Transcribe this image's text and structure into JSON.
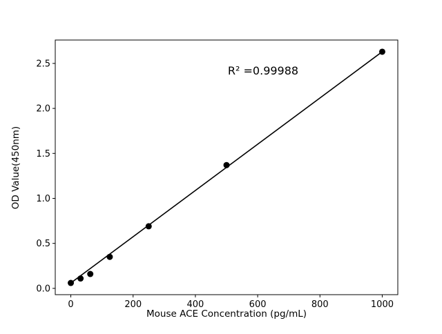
{
  "chart_data": {
    "type": "scatter",
    "title": "",
    "xlabel": "Mouse ACE Concentration (pg/mL)",
    "ylabel": "OD Value(450nm)",
    "annotation": "R² =0.99988",
    "x": [
      0,
      31.25,
      62.5,
      125,
      250,
      500,
      1000
    ],
    "y": [
      0.06,
      0.11,
      0.16,
      0.35,
      0.69,
      1.37,
      2.63
    ],
    "fit_line": {
      "x": [
        0,
        1000
      ],
      "y": [
        0.06,
        2.63
      ]
    },
    "xticks": [
      0,
      200,
      400,
      600,
      800,
      1000
    ],
    "xtick_labels": [
      "0",
      "200",
      "400",
      "600",
      "800",
      "1000"
    ],
    "yticks": [
      0.0,
      0.5,
      1.0,
      1.5,
      2.0,
      2.5
    ],
    "ytick_labels": [
      "0.0",
      "0.5",
      "1.0",
      "1.5",
      "2.0",
      "2.5"
    ],
    "xlim": [
      -50,
      1050
    ],
    "ylim": [
      -0.07,
      2.76
    ],
    "grid": false,
    "legend": "none",
    "marker_color": "#000000",
    "line_color": "#000000",
    "background_color": "#ffffff"
  }
}
